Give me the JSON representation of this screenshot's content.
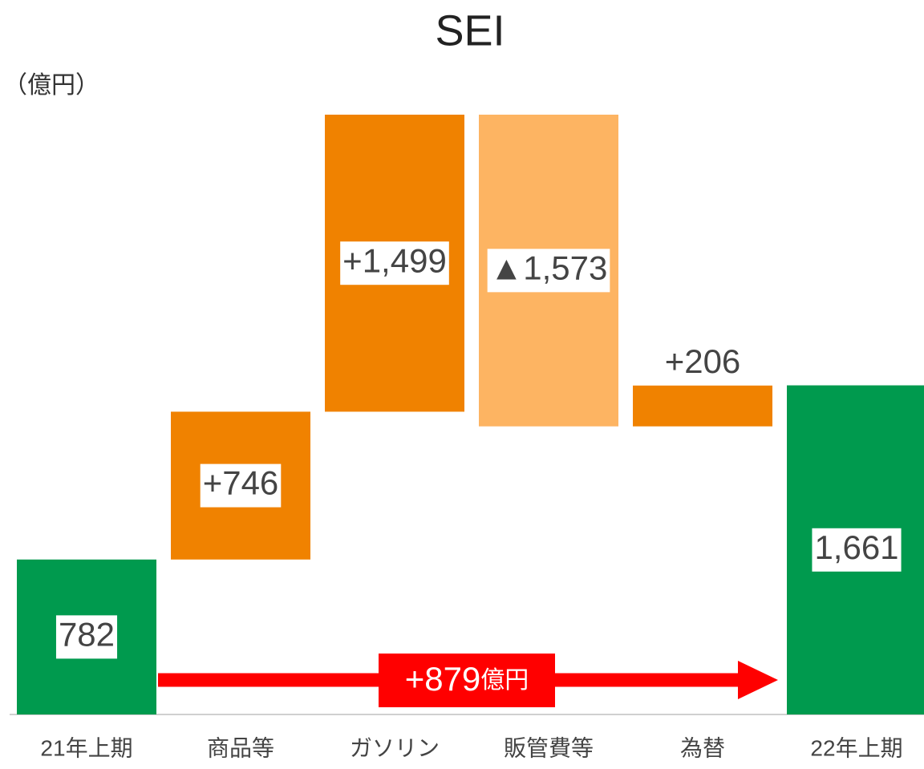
{
  "chart_data": {
    "type": "waterfall",
    "title": "SEI",
    "unit_label": "（億円）",
    "categories": [
      "21年上期",
      "商品等",
      "ガソリン",
      "販管費等",
      "為替",
      "22年上期"
    ],
    "values": [
      782,
      746,
      1499,
      -1573,
      206,
      1661
    ],
    "value_labels": [
      "782",
      "+746",
      "+1,499",
      "▲1,573",
      "+206",
      "1,661"
    ],
    "is_total": [
      true,
      false,
      false,
      false,
      false,
      true
    ],
    "colors": {
      "total": "#009a4e",
      "increase": "#f08200",
      "decrease": "#fdb462"
    },
    "annotation": {
      "value": "+879",
      "unit": "億円",
      "color": "#ff0000"
    }
  }
}
